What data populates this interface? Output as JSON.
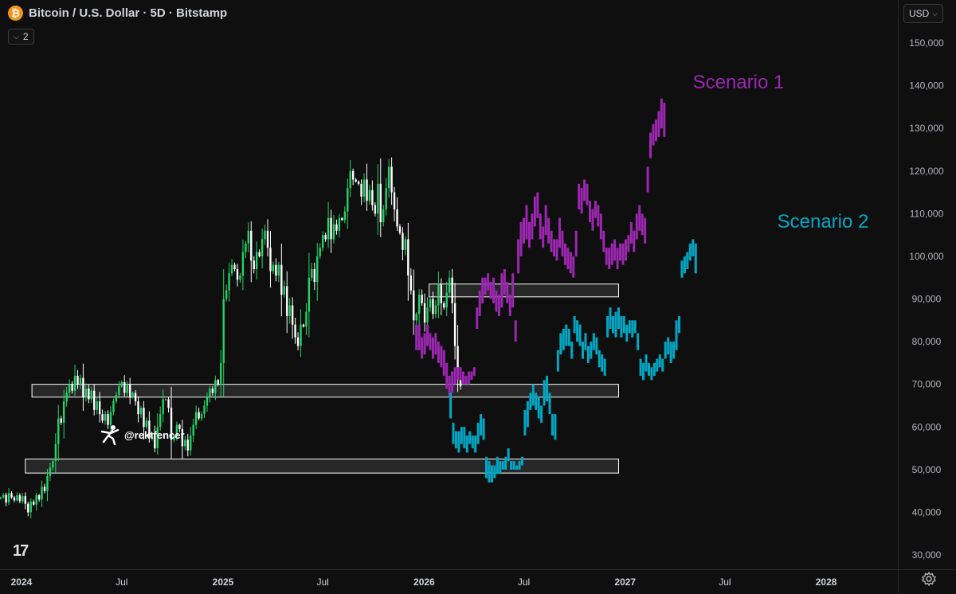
{
  "header": {
    "title": "Bitcoin / U.S. Dollar · 5D · Bitstamp",
    "logo_letter": "₿",
    "collapse_count": "2"
  },
  "toolbar": {
    "currency": "USD"
  },
  "watermark": "@rektfencer",
  "tv_logo": "17",
  "colors": {
    "background": "#0f0f0f",
    "up_candle": "#25d366",
    "down_candle": "#ffffff",
    "scenario1": "#9c27b0",
    "scenario2": "#00a8c6",
    "zone_stroke": "#ffffff"
  },
  "chart_data": {
    "type": "candlestick",
    "y_axis": {
      "min": 28000,
      "max": 157000,
      "ticks": [
        30000,
        40000,
        50000,
        60000,
        70000,
        80000,
        90000,
        100000,
        110000,
        120000,
        130000,
        140000,
        150000
      ],
      "tick_labels": [
        "30,000",
        "40,000",
        "50,000",
        "60,000",
        "70,000",
        "80,000",
        "90,000",
        "100,000",
        "110,000",
        "120,000",
        "130,000",
        "140,000",
        "150,000"
      ]
    },
    "x_axis": {
      "labels": [
        {
          "date": "2024-01",
          "label": "2024"
        },
        {
          "date": "2024-07",
          "label": "Jul"
        },
        {
          "date": "2025-01",
          "label": "2025"
        },
        {
          "date": "2025-07",
          "label": "Jul"
        },
        {
          "date": "2026-01",
          "label": "2026"
        },
        {
          "date": "2026-07",
          "label": "Jul"
        },
        {
          "date": "2027-01",
          "label": "2027"
        },
        {
          "date": "2027-07",
          "label": "Jul"
        },
        {
          "date": "2028-01",
          "label": "2028"
        }
      ],
      "range": [
        "2023-11-23",
        "2028-05-10"
      ]
    },
    "zones": [
      {
        "from": "2026-01-10",
        "to": "2026-12-20",
        "low": 90500,
        "high": 93500
      },
      {
        "from": "2024-01-20",
        "to": "2026-12-20",
        "low": 67000,
        "high": 70000
      },
      {
        "from": "2024-01-08",
        "to": "2026-12-20",
        "low": 49200,
        "high": 52500
      }
    ],
    "historical": {
      "start": "2023-11-24",
      "interval_days": 5,
      "closes": [
        43500,
        44100,
        42300,
        44500,
        43500,
        42800,
        44000,
        42600,
        43800,
        42000,
        40000,
        42500,
        41800,
        44000,
        43000,
        46000,
        45000,
        48500,
        50500,
        52000,
        56000,
        62000,
        61000,
        66000,
        68000,
        70000,
        68500,
        72000,
        70000,
        71500,
        67000,
        69000,
        66500,
        68500,
        64000,
        66000,
        63000,
        61500,
        63000,
        60500,
        63500,
        66000,
        67500,
        69500,
        70500,
        68000,
        70000,
        67000,
        68000,
        66000,
        63000,
        64500,
        60000,
        61500,
        57500,
        58500,
        55000,
        60000,
        63000,
        66500,
        66500,
        64500,
        57000,
        58000,
        60500,
        59500,
        55500,
        57000,
        54500,
        58000,
        60500,
        63500,
        62000,
        63000,
        65000,
        67000,
        69000,
        68000,
        71000,
        70000,
        75000,
        90000,
        92000,
        96000,
        98000,
        97000,
        94500,
        95500,
        101000,
        103000,
        106000,
        99000,
        97000,
        101000,
        100000,
        104000,
        106000,
        102000,
        96500,
        98000,
        95500,
        98000,
        91000,
        93000,
        86000,
        88500,
        84000,
        81000,
        79000,
        84000,
        83500,
        87000,
        95000,
        97000,
        94000,
        100000,
        102000,
        105000,
        104000,
        109000,
        104000,
        107500,
        106000,
        109000,
        108500,
        110500,
        116000,
        120000,
        118000,
        117500,
        117000,
        114000,
        118000,
        113000,
        115500,
        112000,
        110000,
        117000,
        108000,
        111000,
        116000,
        121000,
        115000,
        111000,
        107000,
        105500,
        101500,
        104000,
        95500,
        92000,
        85000,
        86500,
        91000,
        89000,
        84500,
        88000,
        90000,
        86500,
        88500,
        93500,
        89000,
        88000,
        91500,
        95000,
        89000,
        79000,
        71000,
        69500
      ]
    },
    "scenario1": {
      "name": "Scenario 1",
      "start": "2025-12-18",
      "interval_days": 5,
      "candles": [
        [
          78000,
          84000
        ],
        [
          78000,
          84000
        ],
        [
          76000,
          81000
        ],
        [
          77000,
          82000
        ],
        [
          79000,
          84000
        ],
        [
          78000,
          82000
        ],
        [
          76000,
          81000
        ],
        [
          77000,
          82000
        ],
        [
          75000,
          80000
        ],
        [
          74000,
          79000
        ],
        [
          72000,
          78000
        ],
        [
          69000,
          75000
        ],
        [
          67000,
          72000
        ],
        [
          68000,
          73000
        ],
        [
          70000,
          74000
        ],
        [
          71000,
          74000
        ],
        [
          71000,
          74000
        ],
        [
          70000,
          73000
        ],
        [
          70000,
          72000
        ],
        [
          70000,
          73000
        ],
        [
          71000,
          73000
        ],
        [
          72000,
          74000
        ],
        [
          83000,
          88000
        ],
        [
          86000,
          92000
        ],
        [
          89000,
          95000
        ],
        [
          91000,
          95000
        ],
        [
          92000,
          96000
        ],
        [
          90000,
          94000
        ],
        [
          89000,
          95000
        ],
        [
          87000,
          92000
        ],
        [
          86000,
          91000
        ],
        [
          88000,
          96000
        ],
        [
          91000,
          97000
        ],
        [
          89000,
          94000
        ],
        [
          86000,
          91000
        ],
        [
          88000,
          96000
        ],
        [
          80000,
          85000
        ],
        [
          96000,
          104000
        ],
        [
          100000,
          108000
        ],
        [
          103000,
          109000
        ],
        [
          104000,
          112000
        ],
        [
          102000,
          108000
        ],
        [
          104000,
          110000
        ],
        [
          107000,
          114000
        ],
        [
          109000,
          115000
        ],
        [
          104000,
          110000
        ],
        [
          102000,
          107000
        ],
        [
          105000,
          112000
        ],
        [
          103000,
          109000
        ],
        [
          101000,
          106000
        ],
        [
          100000,
          104000
        ],
        [
          99000,
          104000
        ],
        [
          102000,
          109000
        ],
        [
          100000,
          106000
        ],
        [
          98000,
          103000
        ],
        [
          97000,
          102000
        ],
        [
          96000,
          101000
        ],
        [
          95000,
          100000
        ],
        [
          100000,
          106000
        ],
        [
          111000,
          117000
        ],
        [
          110000,
          116000
        ],
        [
          113000,
          118000
        ],
        [
          112000,
          117000
        ],
        [
          108000,
          113000
        ],
        [
          106000,
          111000
        ],
        [
          109000,
          113000
        ],
        [
          107000,
          112000
        ],
        [
          104000,
          110000
        ],
        [
          101000,
          106000
        ],
        [
          98000,
          102000
        ],
        [
          97000,
          102000
        ],
        [
          98000,
          103000
        ],
        [
          99000,
          104000
        ],
        [
          97000,
          102000
        ],
        [
          99000,
          103000
        ],
        [
          98000,
          103000
        ],
        [
          99000,
          104000
        ],
        [
          101000,
          105000
        ],
        [
          103000,
          108000
        ],
        [
          101000,
          106000
        ],
        [
          104000,
          110000
        ],
        [
          106000,
          112000
        ],
        [
          105000,
          110000
        ],
        [
          103000,
          109000
        ],
        [
          115000,
          121000
        ],
        [
          123000,
          129000
        ],
        [
          126000,
          131000
        ],
        [
          127000,
          132000
        ],
        [
          128000,
          134000
        ],
        [
          130000,
          137000
        ],
        [
          128000,
          136000
        ]
      ]
    },
    "scenario2": {
      "name": "Scenario 2",
      "start": "2026-02-18",
      "interval_days": 5,
      "candles": [
        [
          62000,
          68000
        ],
        [
          56000,
          61000
        ],
        [
          55000,
          59000
        ],
        [
          54000,
          59000
        ],
        [
          56000,
          60000
        ],
        [
          55000,
          60000
        ],
        [
          54000,
          58000
        ],
        [
          56000,
          59000
        ],
        [
          55000,
          58000
        ],
        [
          54000,
          58000
        ],
        [
          56000,
          61000
        ],
        [
          58000,
          63000
        ],
        [
          57000,
          62000
        ],
        [
          48000,
          53000
        ],
        [
          47000,
          52000
        ],
        [
          47000,
          51000
        ],
        [
          48000,
          51000
        ],
        [
          49000,
          53000
        ],
        [
          49000,
          52000
        ],
        [
          50000,
          52000
        ],
        [
          50000,
          53000
        ],
        [
          52000,
          55000
        ],
        [
          50000,
          52000
        ],
        [
          50000,
          52000
        ],
        [
          50000,
          51000
        ],
        [
          50000,
          52000
        ],
        [
          51000,
          53000
        ],
        [
          58000,
          64000
        ],
        [
          60000,
          66000
        ],
        [
          64000,
          68000
        ],
        [
          65000,
          70000
        ],
        [
          64000,
          68000
        ],
        [
          62000,
          67000
        ],
        [
          61000,
          65000
        ],
        [
          65000,
          71000
        ],
        [
          66000,
          72000
        ],
        [
          63000,
          68000
        ],
        [
          58000,
          63000
        ],
        [
          57000,
          63000
        ],
        [
          73000,
          78000
        ],
        [
          77000,
          82000
        ],
        [
          78000,
          83000
        ],
        [
          79000,
          84000
        ],
        [
          79000,
          83000
        ],
        [
          76000,
          80000
        ],
        [
          82000,
          86000
        ],
        [
          80000,
          85000
        ],
        [
          79000,
          84000
        ],
        [
          76000,
          80000
        ],
        [
          78000,
          82000
        ],
        [
          75000,
          79000
        ],
        [
          76000,
          80000
        ],
        [
          78000,
          82000
        ],
        [
          77000,
          81000
        ],
        [
          74000,
          78000
        ],
        [
          73000,
          77000
        ],
        [
          72000,
          76000
        ],
        [
          81000,
          86000
        ],
        [
          83000,
          88000
        ],
        [
          82000,
          86000
        ],
        [
          81000,
          87000
        ],
        [
          83000,
          88000
        ],
        [
          81000,
          86000
        ],
        [
          82000,
          86000
        ],
        [
          80000,
          84000
        ],
        [
          82000,
          85000
        ],
        [
          81000,
          85000
        ],
        [
          82000,
          85000
        ],
        [
          78000,
          82000
        ],
        [
          72000,
          76000
        ],
        [
          71000,
          75000
        ],
        [
          73000,
          77000
        ],
        [
          72000,
          75000
        ],
        [
          71000,
          74000
        ],
        [
          72000,
          75000
        ],
        [
          73000,
          76000
        ],
        [
          74000,
          77000
        ],
        [
          73000,
          76000
        ],
        [
          76000,
          80000
        ],
        [
          77000,
          81000
        ],
        [
          75000,
          80000
        ],
        [
          76000,
          80000
        ],
        [
          78000,
          85000
        ],
        [
          82000,
          86000
        ],
        [
          95000,
          99000
        ],
        [
          96000,
          100000
        ],
        [
          97000,
          101000
        ],
        [
          99000,
          103000
        ],
        [
          100000,
          104000
        ],
        [
          96000,
          103000
        ]
      ]
    }
  }
}
